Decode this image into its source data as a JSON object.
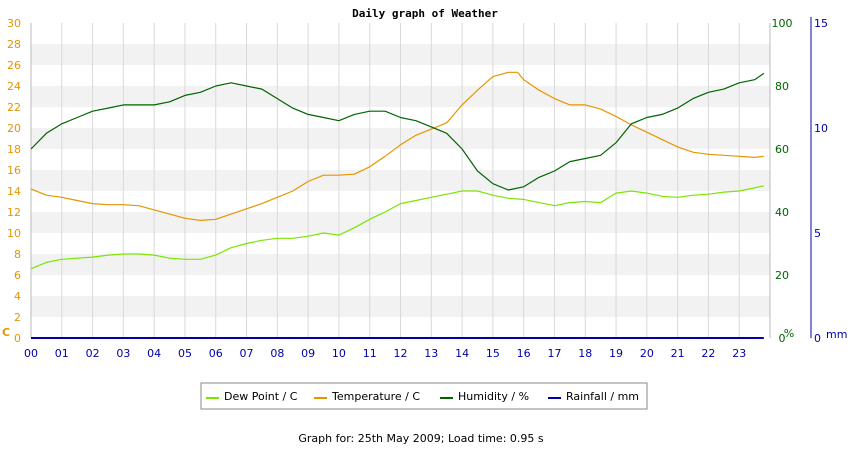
{
  "chart_data": {
    "type": "line",
    "title": "Daily graph of Weather",
    "x_ticks": [
      "00",
      "01",
      "02",
      "03",
      "04",
      "05",
      "06",
      "07",
      "08",
      "09",
      "10",
      "11",
      "12",
      "13",
      "14",
      "15",
      "16",
      "17",
      "18",
      "19",
      "20",
      "21",
      "22",
      "23"
    ],
    "xlim": [
      0,
      24
    ],
    "axes": {
      "left": {
        "unit": "C",
        "min": 0,
        "max": 30,
        "step": 2,
        "color": "#e69500"
      },
      "right1": {
        "unit": "%",
        "min": 0,
        "max": 100,
        "step": 20,
        "color": "#006400"
      },
      "right2": {
        "unit": "mm",
        "min": 0,
        "max": 15,
        "step": 5,
        "color": "#0000aa"
      }
    },
    "series": [
      {
        "name": "Dew Point / C",
        "axis": "left",
        "color": "#7ae600",
        "x": [
          0,
          0.5,
          1,
          1.5,
          2,
          2.5,
          3,
          3.5,
          4,
          4.5,
          5,
          5.5,
          6,
          6.5,
          7,
          7.5,
          8,
          8.5,
          9,
          9.5,
          10,
          10.5,
          11,
          11.5,
          12,
          12.5,
          13,
          13.5,
          14,
          14.5,
          15,
          15.5,
          16,
          16.5,
          17,
          17.5,
          18,
          18.5,
          19,
          19.5,
          20,
          20.5,
          21,
          21.5,
          22,
          22.5,
          23,
          23.5,
          23.8
        ],
        "y": [
          6.6,
          7.2,
          7.5,
          7.6,
          7.7,
          7.9,
          8.0,
          8.0,
          7.9,
          7.6,
          7.5,
          7.5,
          7.9,
          8.6,
          9.0,
          9.3,
          9.5,
          9.5,
          9.7,
          10.0,
          9.8,
          10.5,
          11.3,
          12.0,
          12.8,
          13.1,
          13.4,
          13.7,
          14.0,
          14.0,
          13.6,
          13.3,
          13.2,
          12.9,
          12.6,
          12.9,
          13.0,
          12.9,
          13.8,
          14.0,
          13.8,
          13.5,
          13.4,
          13.6,
          13.7,
          13.9,
          14.0,
          14.3,
          14.5
        ]
      },
      {
        "name": "Temperature / C",
        "axis": "left",
        "color": "#e69500",
        "x": [
          0,
          0.5,
          1,
          1.5,
          2,
          2.5,
          3,
          3.5,
          4,
          4.5,
          5,
          5.5,
          6,
          6.5,
          7,
          7.5,
          8,
          8.5,
          9,
          9.5,
          10,
          10.5,
          11,
          11.5,
          12,
          12.5,
          13,
          13.5,
          14,
          14.5,
          15,
          15.5,
          15.8,
          16,
          16.5,
          17,
          17.5,
          18,
          18.5,
          19,
          19.5,
          20,
          20.5,
          21,
          21.5,
          22,
          22.5,
          23,
          23.5,
          23.8
        ],
        "y": [
          14.2,
          13.6,
          13.4,
          13.1,
          12.8,
          12.7,
          12.7,
          12.6,
          12.2,
          11.8,
          11.4,
          11.2,
          11.3,
          11.8,
          12.3,
          12.8,
          13.4,
          14.0,
          14.9,
          15.5,
          15.5,
          15.6,
          16.3,
          17.3,
          18.4,
          19.3,
          19.9,
          20.5,
          22.2,
          23.6,
          24.9,
          25.3,
          25.3,
          24.6,
          23.6,
          22.8,
          22.2,
          22.2,
          21.8,
          21.1,
          20.3,
          19.6,
          18.9,
          18.2,
          17.7,
          17.5,
          17.4,
          17.3,
          17.2,
          17.3
        ]
      },
      {
        "name": "Humidity / %",
        "axis": "right1",
        "color": "#006400",
        "x": [
          0,
          0.5,
          1,
          1.5,
          2,
          2.5,
          3,
          3.5,
          4,
          4.5,
          5,
          5.5,
          6,
          6.5,
          7,
          7.5,
          8,
          8.5,
          9,
          9.5,
          10,
          10.5,
          11,
          11.5,
          12,
          12.5,
          13,
          13.5,
          14,
          14.5,
          15,
          15.5,
          16,
          16.5,
          17,
          17.5,
          18,
          18.5,
          19,
          19.5,
          20,
          20.5,
          21,
          21.5,
          22,
          22.5,
          23,
          23.5,
          23.8
        ],
        "y": [
          60,
          65,
          68,
          70,
          72,
          73,
          74,
          74,
          74,
          75,
          77,
          78,
          80,
          81,
          80,
          79,
          76,
          73,
          71,
          70,
          69,
          71,
          72,
          72,
          70,
          69,
          67,
          65,
          60,
          53,
          49,
          47,
          48,
          51,
          53,
          56,
          57,
          58,
          62,
          68,
          70,
          71,
          73,
          76,
          78,
          79,
          81,
          82,
          84
        ]
      },
      {
        "name": "Rainfall / mm",
        "axis": "right2",
        "color": "#0000aa",
        "x": [
          0,
          23.8
        ],
        "y": [
          0,
          0
        ]
      }
    ],
    "legend_position": "bottom-center",
    "grid": true
  },
  "footer": {
    "text": "Graph for: 25th May 2009; Load time: 0.95 s"
  }
}
